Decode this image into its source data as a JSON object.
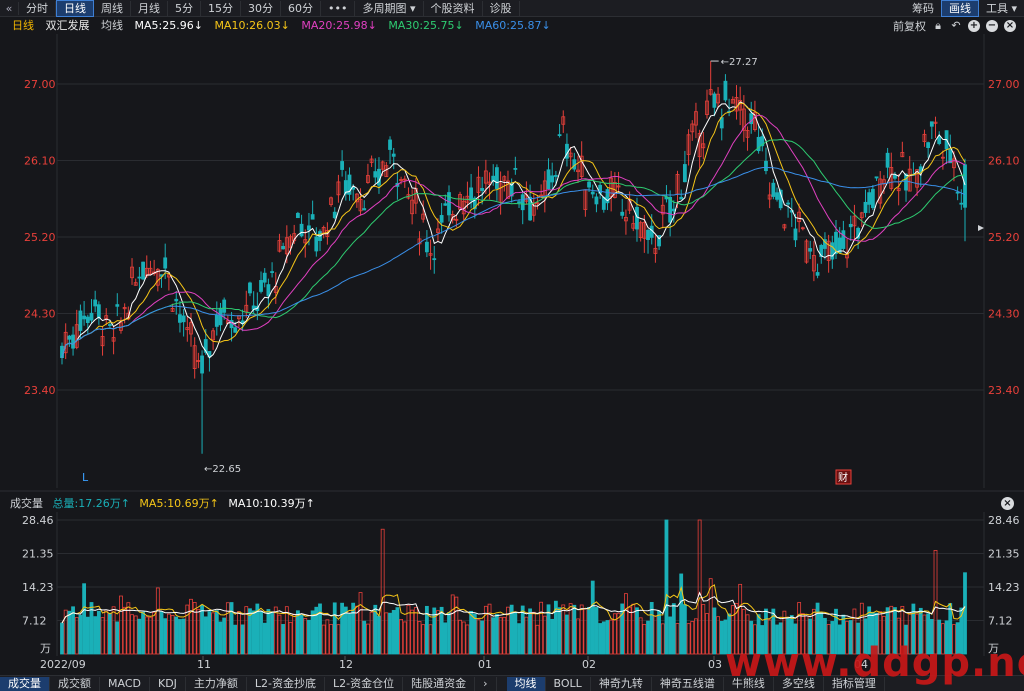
{
  "toolbar": {
    "back_icon": "«",
    "tabs": [
      "分时",
      "日线",
      "周线",
      "月线",
      "5分",
      "15分",
      "30分",
      "60分",
      "•••",
      "多周期图 ▾",
      "个股资料",
      "诊股"
    ],
    "active_tab": "日线",
    "right_items": [
      "筹码",
      "画线",
      "工具 ▾"
    ],
    "active_right": "画线"
  },
  "legend": {
    "period": "日线",
    "stock_name": "双汇发展",
    "ma_label": "均线",
    "ma5": "MA5:25.96↓",
    "ma10": "MA10:26.03↓",
    "ma20": "MA20:25.98↓",
    "ma30": "MA30:25.75↓",
    "ma60": "MA60:25.87↓",
    "adjust": "前复权"
  },
  "colors": {
    "ma5": "#ffffff",
    "ma10": "#f5c518",
    "ma20": "#e040c0",
    "ma30": "#2ecc71",
    "ma60": "#3a8fe8",
    "up": "#e8403a",
    "down": "#1ab0b8",
    "price_label": "#e8403a"
  },
  "chart_data": {
    "type": "candlestick",
    "y_ticks": [
      "27.00",
      "26.10",
      "25.20",
      "24.30",
      "23.40"
    ],
    "y_tick_values": [
      27.0,
      26.1,
      25.2,
      24.3,
      23.4
    ],
    "high_label": "27.27",
    "low_label": "22.65",
    "marker_l": "L",
    "marker_cai": "财",
    "volume": {
      "legend_title": "成交量",
      "total": "总量:17.26万↑",
      "ma5": "MA5:10.69万↑",
      "ma10": "MA10:10.39万↑",
      "y_ticks": [
        "28.46",
        "21.35",
        "14.23",
        "7.12",
        "万"
      ],
      "y_tick_values": [
        28.46,
        21.35,
        14.23,
        7.12
      ]
    },
    "x_ticks": [
      "2022/09",
      "11",
      "12",
      "01",
      "02",
      "03",
      "04"
    ]
  },
  "bottom_tabs": [
    "成交量",
    "成交额",
    "MACD",
    "KDJ",
    "主力净额",
    "L2-资金抄底",
    "L2-资金仓位",
    "陆股通资金"
  ],
  "bottom_tabs_right": [
    "均线",
    "BOLL",
    "神奇九转",
    "神奇五线谱",
    "牛熊线",
    "多空线",
    "指标管理"
  ],
  "active_bottom": "成交量",
  "active_bottom_right": "均线",
  "watermark": "www.ddgp.net"
}
